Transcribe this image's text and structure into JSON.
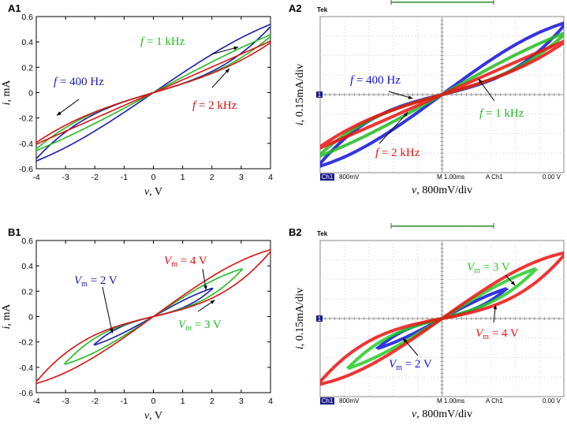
{
  "chart_data": [
    {
      "id": "A1",
      "type": "line",
      "panel_label": "A1",
      "xlabel_var": "v",
      "xlabel_unit": ", V",
      "ylabel_var": "i",
      "ylabel_unit": ", mA",
      "xlim": [
        -4,
        4
      ],
      "ylim": [
        -0.6,
        0.6
      ],
      "xticks": [
        -4,
        -3,
        -2,
        -1,
        0,
        1,
        2,
        3,
        4
      ],
      "yticks": [
        -0.6,
        -0.4,
        -0.2,
        0,
        0.2,
        0.4,
        0.6
      ],
      "series": [
        {
          "name": "f = 400 Hz",
          "color": "#1a1ab0",
          "vmax": 4,
          "imax": 0.53,
          "width": 0.11,
          "tip": 0.05
        },
        {
          "name": "f = 1 kHz",
          "color": "#22bb22",
          "vmax": 4,
          "imax": 0.45,
          "width": 0.07,
          "tip": 0.04
        },
        {
          "name": "f = 2 kHz",
          "color": "#dd1111",
          "vmax": 4,
          "imax": 0.4,
          "width": 0.04,
          "tip": 0.04
        }
      ],
      "annotations": [
        {
          "var": "f",
          "text": " = 400 Hz",
          "color": "#1a1ab0",
          "point": [
            -3.3,
            -0.18
          ]
        },
        {
          "var": "f",
          "text": " = 1 kHz",
          "color": "#22bb22",
          "point": [
            2.9,
            0.36
          ]
        },
        {
          "var": "f",
          "text": " = 2 kHz",
          "color": "#dd1111",
          "point": [
            2.6,
            0.19
          ]
        }
      ]
    },
    {
      "id": "B1",
      "type": "line",
      "panel_label": "B1",
      "xlabel_var": "v",
      "xlabel_unit": ", V",
      "ylabel_var": "i",
      "ylabel_unit": ", mA",
      "xlim": [
        -4,
        4
      ],
      "ylim": [
        -0.6,
        0.6
      ],
      "xticks": [
        -4,
        -3,
        -2,
        -1,
        0,
        1,
        2,
        3,
        4
      ],
      "yticks": [
        -0.6,
        -0.4,
        -0.2,
        0,
        0.2,
        0.4,
        0.6
      ],
      "series": [
        {
          "name": "Vm = 2 V",
          "color": "#1a1ab0",
          "vmax": 2,
          "imax": 0.22,
          "width": 0.045,
          "tip": 0.02
        },
        {
          "name": "Vm = 3 V",
          "color": "#22bb22",
          "vmax": 3,
          "imax": 0.37,
          "width": 0.09,
          "tip": 0.03
        },
        {
          "name": "Vm = 4 V",
          "color": "#dd1111",
          "vmax": 4,
          "imax": 0.52,
          "width": 0.14,
          "tip": 0.04
        }
      ],
      "annotations": [
        {
          "var": "V",
          "sub": "m",
          "text": " = 4 V",
          "color": "#dd1111",
          "point": [
            1.8,
            0.21
          ]
        },
        {
          "var": "V",
          "sub": "m",
          "text": " = 2 V",
          "color": "#1a1ab0",
          "point": [
            -1.4,
            -0.13
          ]
        },
        {
          "var": "V",
          "sub": "m",
          "text": " = 3 V",
          "color": "#22bb22",
          "point": [
            2.1,
            0.13
          ]
        }
      ]
    },
    {
      "id": "A2",
      "type": "line",
      "panel_label": "A2",
      "oscilloscope": true,
      "brand": "Tek",
      "xlabel_var": "v",
      "xlabel_unit": ", 800mV/div",
      "ylabel_var": "i",
      "ylabel_unit": ", 0.15mA/div",
      "divisions": [
        10,
        8
      ],
      "channel_marker": "1",
      "status": {
        "ch": "Ch1",
        "volts": "800mV",
        "time": "M 1.00ms",
        "trig_label": "A Ch1",
        "trig_level": "0.00 V"
      },
      "series": [
        {
          "name": "f = 400 Hz",
          "color": "#1111dd",
          "vmax": 5,
          "imax": 3.6,
          "width": 0.95,
          "tip": 0.35
        },
        {
          "name": "f = 1 kHz",
          "color": "#22bb22",
          "vmax": 5,
          "imax": 3.1,
          "width": 0.55,
          "tip": 0.25
        },
        {
          "name": "f = 2 kHz",
          "color": "#ee1111",
          "vmax": 5,
          "imax": 2.7,
          "width": 0.3,
          "tip": 0.2
        }
      ],
      "annotations": [
        {
          "var": "f",
          "text": " = 400 Hz",
          "color": "#1111dd",
          "point": [
            -1.2,
            -0.2
          ]
        },
        {
          "var": "f",
          "text": " = 1 kHz",
          "color": "#22bb22",
          "point": [
            1.5,
            0.8
          ]
        },
        {
          "var": "f",
          "text": " = 2 kHz",
          "color": "#ee1111",
          "point": [
            -1.4,
            -0.9
          ]
        }
      ]
    },
    {
      "id": "B2",
      "type": "line",
      "panel_label": "B2",
      "oscilloscope": true,
      "brand": "Tek",
      "xlabel_var": "v",
      "xlabel_unit": ", 800mV/div",
      "ylabel_var": "i",
      "ylabel_unit": ", 0.15mA/div",
      "divisions": [
        10,
        8
      ],
      "channel_marker": "1",
      "status": {
        "ch": "Ch1",
        "volts": "800mV",
        "time": "M 1.00ms",
        "trig_label": "A Ch1",
        "trig_level": "0.00 V"
      },
      "series": [
        {
          "name": "Vm = 2 V",
          "color": "#1111dd",
          "vmax": 2.6,
          "imax": 1.5,
          "width": 0.3,
          "tip": 0.1
        },
        {
          "name": "Vm = 3 V",
          "color": "#22cc22",
          "vmax": 3.8,
          "imax": 2.5,
          "width": 0.55,
          "tip": 0.2
        },
        {
          "name": "Vm = 4 V",
          "color": "#ee1111",
          "vmax": 5,
          "imax": 3.3,
          "width": 1.0,
          "tip": 0.35
        }
      ],
      "annotations": [
        {
          "var": "V",
          "sub": "m",
          "text": " = 3 V",
          "color": "#22cc22",
          "point": [
            3.0,
            1.7
          ]
        },
        {
          "var": "V",
          "sub": "m",
          "text": " = 4 V",
          "color": "#ee1111",
          "point": [
            2.2,
            0.7
          ]
        },
        {
          "var": "V",
          "sub": "m",
          "text": " = 2 V",
          "color": "#1111dd",
          "point": [
            -1.6,
            -1.0
          ]
        }
      ]
    }
  ]
}
